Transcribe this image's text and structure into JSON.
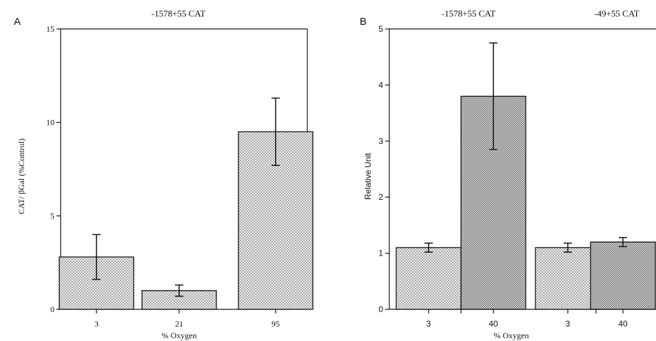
{
  "chart_data": [
    {
      "panel": "A",
      "type": "bar",
      "title": "-1578+55 CAT",
      "xlabel": "% Oxygen",
      "ylabel": "CAT/ βGal (%Control)",
      "categories": [
        "3",
        "21",
        "95"
      ],
      "values": [
        2.8,
        1.0,
        9.5
      ],
      "errors": [
        1.2,
        0.3,
        1.8
      ],
      "ylim": [
        0,
        15
      ],
      "yticks": [
        "0",
        "5",
        "10",
        "15"
      ],
      "grid": false
    },
    {
      "panel": "B",
      "type": "bar",
      "titles": [
        "-1578+55 CAT",
        "-49+55 CAT"
      ],
      "xlabel": "% Oxygen",
      "ylabel": "Relative Unit",
      "categories": [
        "3",
        "40",
        "3",
        "40"
      ],
      "groups": [
        "-1578+55 CAT",
        "-1578+55 CAT",
        "-49+55 CAT",
        "-49+55 CAT"
      ],
      "values": [
        1.1,
        3.8,
        1.1,
        1.2
      ],
      "errors": [
        0.08,
        0.95,
        0.08,
        0.08
      ],
      "ylim": [
        0,
        5
      ],
      "yticks": [
        "0",
        "1",
        "2",
        "3",
        "4",
        "5"
      ],
      "grid": false
    }
  ],
  "colors": {
    "ink": "#111111",
    "dot": "#444444",
    "bar_fill": "#e8e8e8",
    "bar_fill_dense": "#d2d2d2"
  }
}
